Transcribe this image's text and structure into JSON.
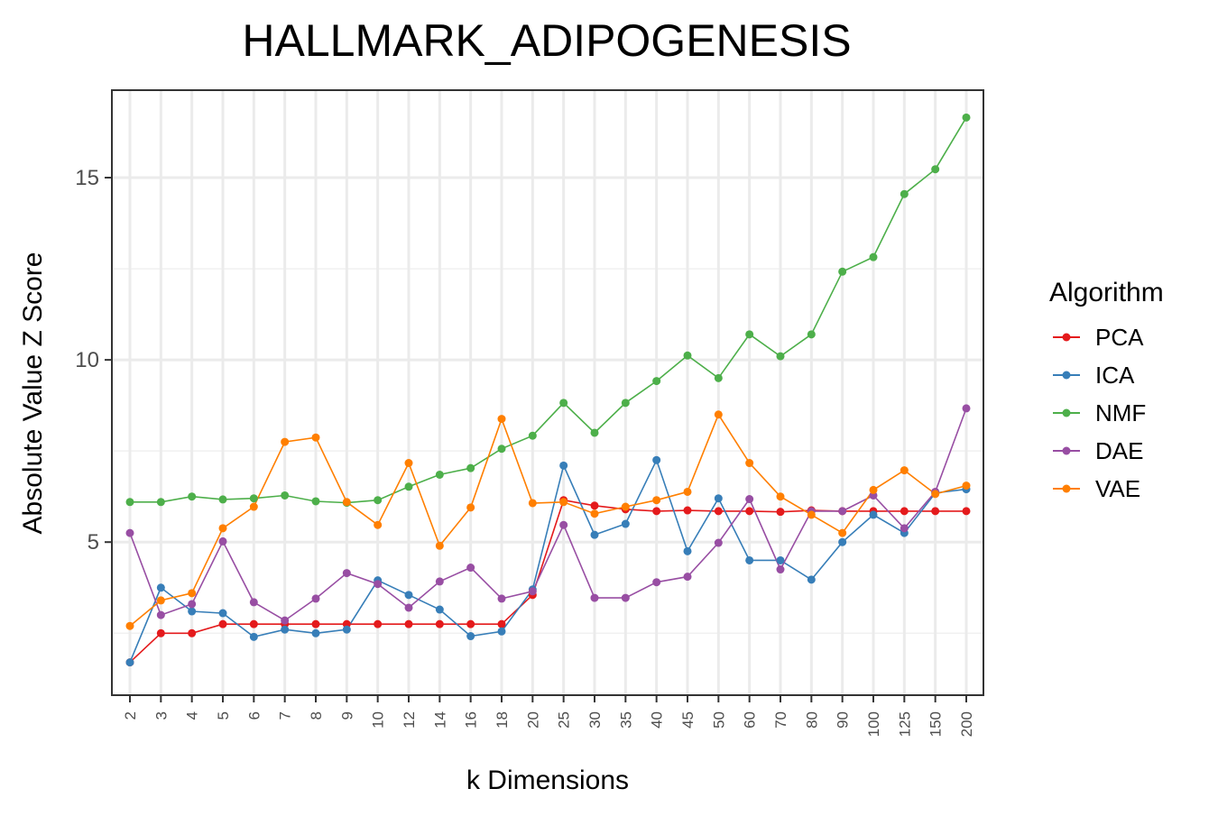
{
  "chart_data": {
    "type": "line",
    "title": "HALLMARK_ADIPOGENESIS",
    "xlabel": "k Dimensions",
    "ylabel": "Absolute Value Z Score",
    "categories": [
      "2",
      "3",
      "4",
      "5",
      "6",
      "7",
      "8",
      "9",
      "10",
      "12",
      "14",
      "16",
      "18",
      "20",
      "25",
      "30",
      "35",
      "40",
      "45",
      "50",
      "60",
      "70",
      "80",
      "90",
      "100",
      "125",
      "150",
      "200"
    ],
    "ylim": [
      0.8,
      17.4
    ],
    "yticks": [
      5,
      10,
      15
    ],
    "ytick_labels": [
      "5",
      "10",
      "15"
    ],
    "grid": true,
    "legend": {
      "title": "Algorithm",
      "placement": "right"
    },
    "series": [
      {
        "name": "PCA",
        "color": "#e41a1c",
        "values": [
          1.7,
          2.5,
          2.5,
          2.75,
          2.75,
          2.75,
          2.75,
          2.75,
          2.75,
          2.75,
          2.75,
          2.75,
          2.75,
          3.55,
          6.15,
          6.0,
          5.9,
          5.85,
          5.87,
          5.85,
          5.85,
          5.83,
          5.87,
          5.85,
          5.85,
          5.85,
          5.85,
          5.85
        ]
      },
      {
        "name": "ICA",
        "color": "#377eb8",
        "values": [
          1.7,
          3.75,
          3.1,
          3.05,
          2.4,
          2.6,
          2.5,
          2.6,
          3.95,
          3.55,
          3.15,
          2.42,
          2.55,
          3.7,
          7.1,
          5.2,
          5.5,
          7.25,
          4.75,
          6.2,
          4.5,
          4.5,
          3.97,
          5.0,
          5.75,
          5.25,
          6.35,
          6.45
        ]
      },
      {
        "name": "NMF",
        "color": "#4daf4a",
        "values": [
          6.1,
          6.1,
          6.25,
          6.17,
          6.2,
          6.28,
          6.12,
          6.08,
          6.15,
          6.52,
          6.85,
          7.03,
          7.56,
          7.92,
          8.82,
          8.0,
          8.82,
          9.42,
          10.12,
          9.5,
          10.7,
          10.1,
          10.7,
          12.42,
          12.82,
          14.55,
          15.23,
          16.65
        ]
      },
      {
        "name": "DAE",
        "color": "#984ea3",
        "values": [
          5.25,
          3.0,
          3.3,
          5.02,
          3.35,
          2.85,
          3.45,
          4.15,
          3.85,
          3.2,
          3.92,
          4.3,
          3.45,
          3.65,
          5.47,
          3.47,
          3.47,
          3.9,
          4.05,
          4.98,
          6.18,
          4.25,
          5.85,
          5.85,
          6.28,
          5.38,
          6.38,
          8.67
        ]
      },
      {
        "name": "VAE",
        "color": "#ff7f00",
        "values": [
          2.7,
          3.4,
          3.6,
          5.38,
          5.97,
          7.75,
          7.87,
          6.1,
          5.47,
          7.17,
          4.9,
          5.95,
          8.38,
          6.07,
          6.1,
          5.78,
          5.97,
          6.15,
          6.38,
          8.5,
          7.17,
          6.25,
          5.75,
          5.25,
          6.43,
          6.97,
          6.32,
          6.55
        ]
      }
    ]
  }
}
